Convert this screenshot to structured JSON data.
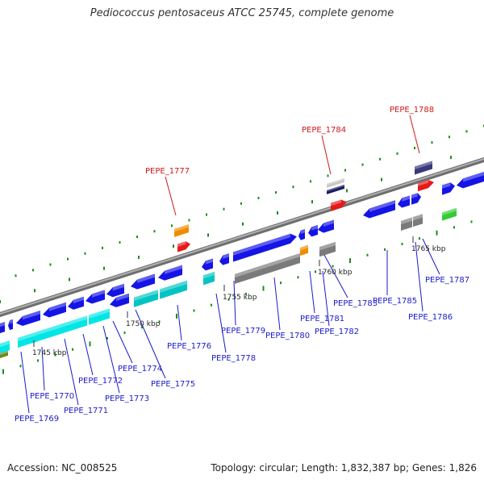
{
  "title": "Pediococcus pentosaceus ATCC 25745, complete genome",
  "footer": {
    "accession": "Accession: NC_008525",
    "topology": "Topology: circular; Length: 1,832,387 bp; Genes: 1,826"
  },
  "colors": {
    "backbone": "#8c8c8c",
    "cds_forward": "#1414e6",
    "cds_reverse": "#00e6e6",
    "cds_gray": "#7a7a7a",
    "label_normal": "#1a1acc",
    "label_highlight": "#cc1a1a",
    "tick": "#1a8c1a",
    "red_feature": "#e61a1a",
    "orange_feature": "#f08c00",
    "green_feature": "#33cc33",
    "navy_feature": "#1a1a66"
  },
  "kbp_labels": [
    "1745 kbp",
    "1750 kbp",
    "1755 kbp",
    "1760 kbp",
    "1765 kbp"
  ],
  "genes_below": [
    "PEPE_1769",
    "PEPE_1770",
    "PEPE_1771",
    "PEPE_1772",
    "PEPE_1773",
    "PEPE_1774",
    "PEPE_1775",
    "PEPE_1776",
    "PEPE_1778",
    "PEPE_1779",
    "PEPE_1780",
    "PEPE_1781",
    "PEPE_1782",
    "PEPE_1783",
    "PEPE_1785",
    "PEPE_1786",
    "PEPE_1787"
  ],
  "genes_above": [
    "PEPE_1777",
    "PEPE_1784",
    "PEPE_1788"
  ]
}
